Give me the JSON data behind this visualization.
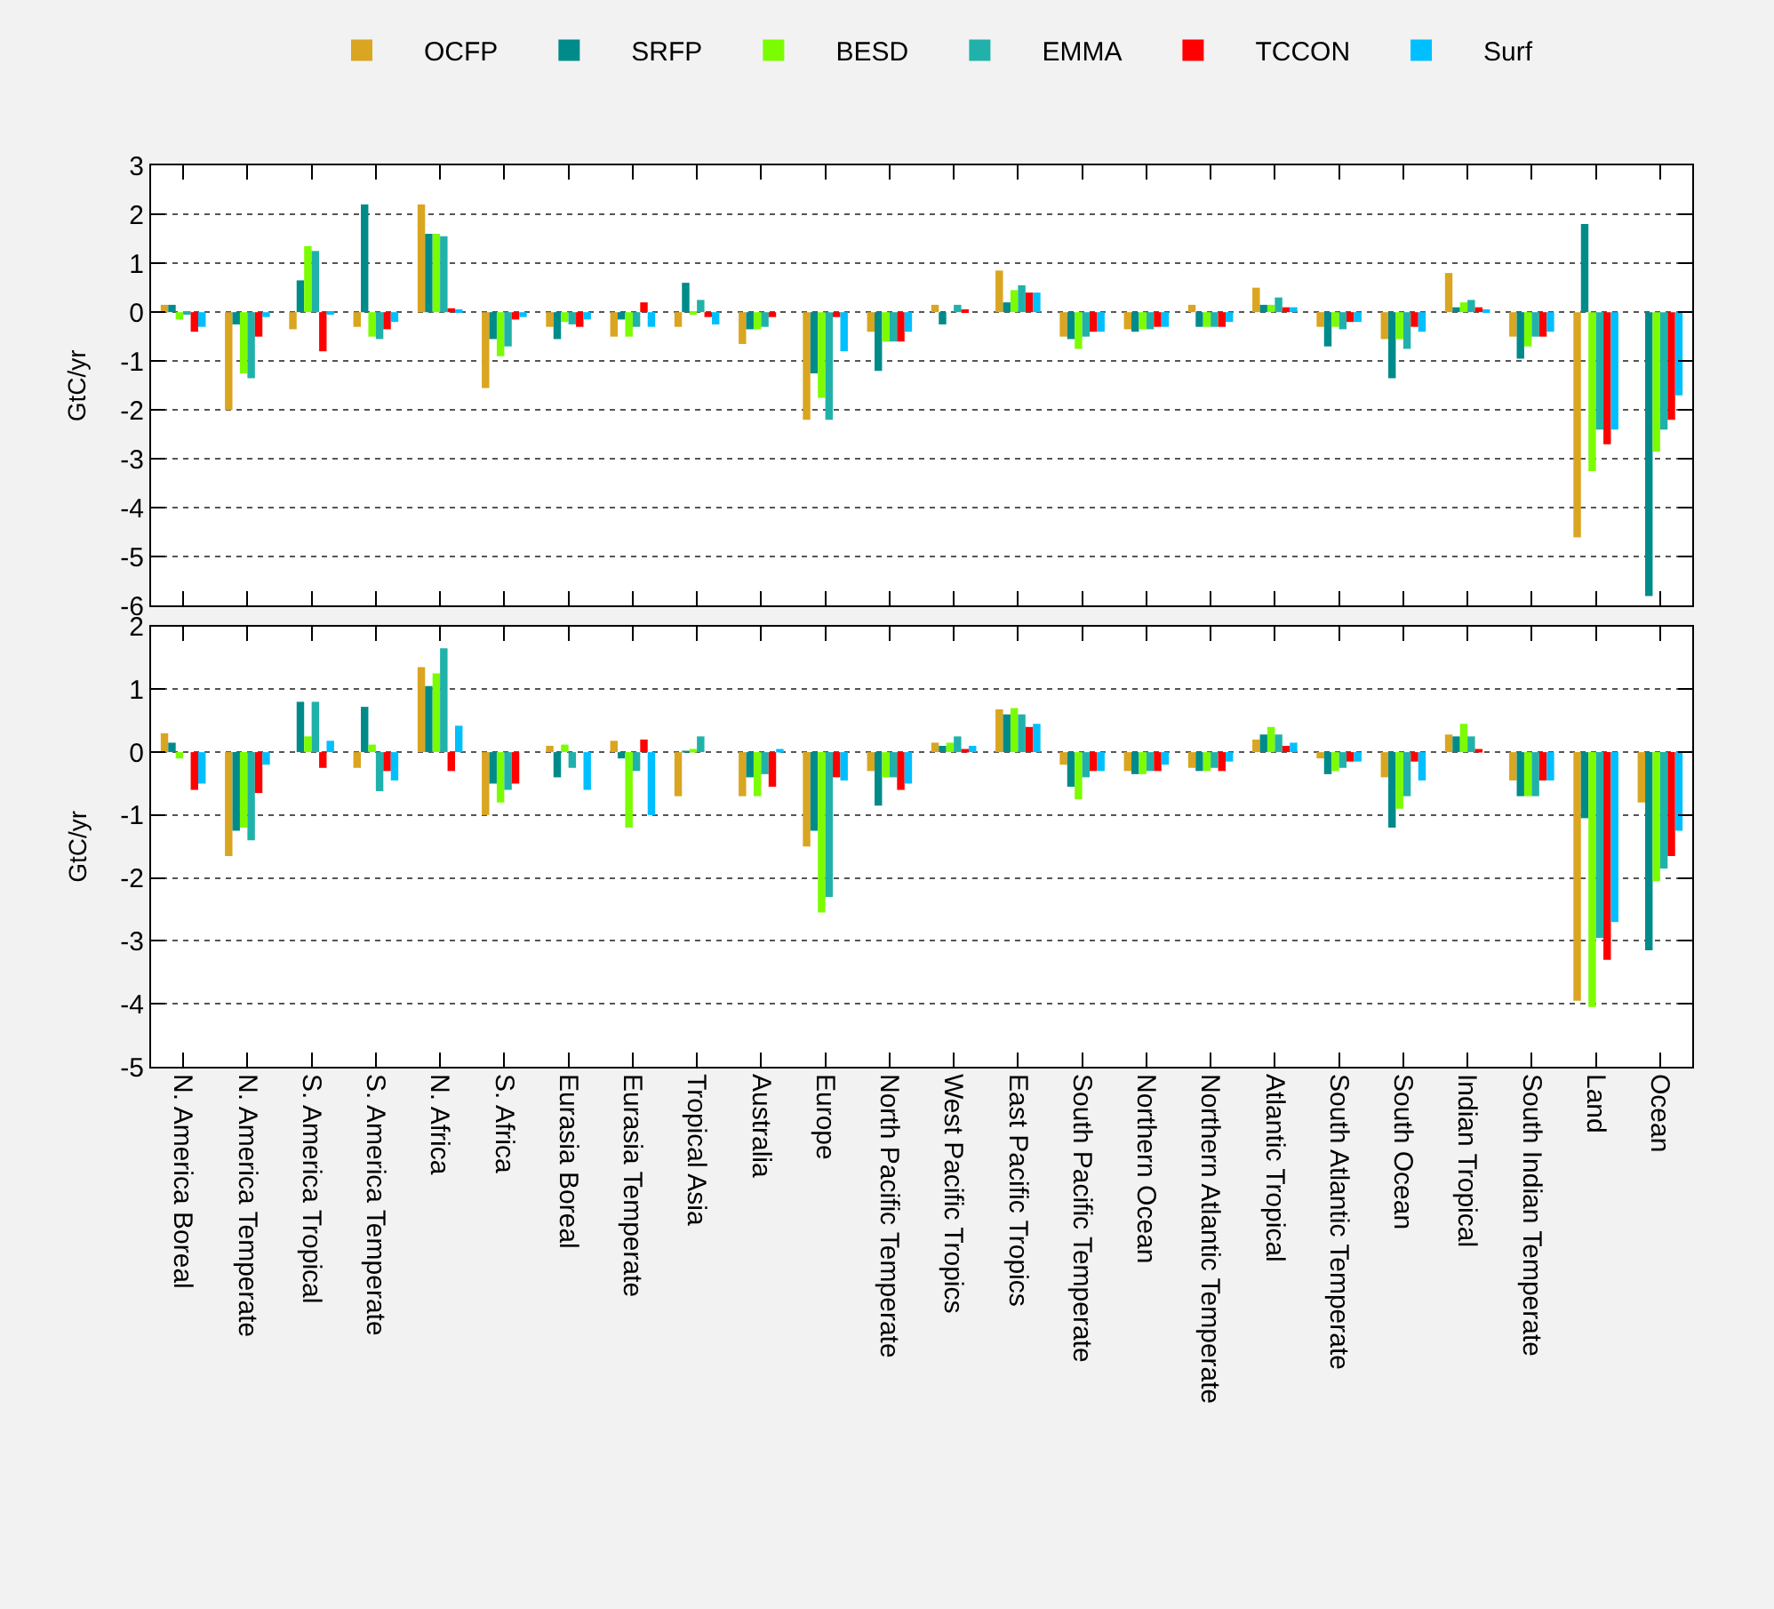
{
  "chart_data": [
    {
      "type": "bar",
      "ylabel": "GtC/yr",
      "legend": "top",
      "grid": "y",
      "tick_labels": "y",
      "categories": [
        null,
        null,
        null,
        null,
        null,
        null,
        null,
        null,
        null,
        null,
        null,
        null,
        null,
        null,
        null,
        null,
        null,
        null,
        null,
        null,
        null,
        null,
        null,
        null
      ],
      "ylim": [
        -6,
        3
      ],
      "yticks": [
        -6,
        -5,
        -4,
        -3,
        -2,
        -1,
        0,
        1,
        2,
        3
      ],
      "series": [
        {
          "name": "OCFP",
          "color": "#daa520",
          "values": [
            0.15,
            -2.0,
            -0.35,
            -0.3,
            2.2,
            -1.55,
            -0.3,
            -0.5,
            -0.3,
            -0.65,
            -2.2,
            -0.4,
            0.15,
            0.85,
            -0.5,
            -0.35,
            0.15,
            0.5,
            -0.3,
            -0.55,
            0.8,
            -0.5,
            -4.6,
            0.0
          ]
        },
        {
          "name": "SRFP",
          "color": "#008b8b",
          "values": [
            0.15,
            -0.25,
            0.65,
            2.2,
            1.6,
            -0.55,
            -0.55,
            -0.15,
            0.6,
            -0.35,
            -1.25,
            -1.2,
            -0.25,
            0.2,
            -0.55,
            -0.4,
            -0.3,
            0.15,
            -0.7,
            -1.35,
            0.1,
            -0.95,
            1.8,
            -5.8
          ]
        },
        {
          "name": "BESD",
          "color": "#7cfc00",
          "values": [
            -0.15,
            -1.25,
            1.35,
            -0.5,
            1.6,
            -0.9,
            -0.2,
            -0.5,
            -0.05,
            -0.35,
            -1.75,
            -0.6,
            0.0,
            0.45,
            -0.75,
            -0.35,
            -0.3,
            0.15,
            -0.3,
            -0.55,
            0.2,
            -0.7,
            -3.25,
            -2.85
          ]
        },
        {
          "name": "EMMA",
          "color": "#20b2aa",
          "values": [
            -0.05,
            -1.35,
            1.25,
            -0.55,
            1.55,
            -0.7,
            -0.25,
            -0.3,
            0.25,
            -0.3,
            -2.2,
            -0.6,
            0.15,
            0.55,
            -0.5,
            -0.35,
            -0.3,
            0.3,
            -0.35,
            -0.75,
            0.25,
            -0.5,
            -2.4,
            -2.4
          ]
        },
        {
          "name": "TCCON",
          "color": "#ff0000",
          "values": [
            -0.4,
            -0.5,
            -0.8,
            -0.35,
            0.08,
            -0.15,
            -0.3,
            0.2,
            -0.1,
            -0.1,
            -0.1,
            -0.6,
            0.05,
            0.4,
            -0.4,
            -0.3,
            -0.3,
            0.1,
            -0.2,
            -0.3,
            0.1,
            -0.5,
            -2.7,
            -2.2
          ]
        },
        {
          "name": "Surf",
          "color": "#00bfff",
          "values": [
            -0.3,
            -0.1,
            -0.05,
            -0.2,
            0.03,
            -0.1,
            -0.15,
            -0.3,
            -0.25,
            0.0,
            -0.8,
            -0.4,
            0.0,
            0.4,
            -0.4,
            -0.3,
            -0.2,
            0.1,
            -0.2,
            -0.4,
            0.05,
            -0.4,
            -2.4,
            -1.7
          ]
        }
      ]
    },
    {
      "type": "bar",
      "ylabel": "GtC/yr",
      "grid": "y",
      "categories": [
        "N. America Boreal",
        "N. America Temperate",
        "S. America Tropical",
        "S. America Temperate",
        "N. Africa",
        "S. Africa",
        "Eurasia Boreal",
        "Eurasia Temperate",
        "Tropical Asia",
        "Australia",
        "Europe",
        "North Pacific Temperate",
        "West Pacific Tropics",
        "East Pacific Tropics",
        "South Pacific Temperate",
        "Northern Ocean",
        "Northern Atlantic Temperate",
        "Atlantic Tropical",
        "South Atlantic Temperate",
        "South Ocean",
        "Indian Tropical",
        "South Indian Temperate",
        "Land",
        "Ocean"
      ],
      "ylim": [
        -5,
        2
      ],
      "yticks": [
        -5,
        -4,
        -3,
        -2,
        -1,
        0,
        1,
        2
      ],
      "series": [
        {
          "color": "#daa520",
          "values": [
            0.3,
            -1.65,
            0.0,
            -0.25,
            1.35,
            -1.0,
            0.1,
            0.18,
            -0.7,
            -0.7,
            -1.5,
            -0.3,
            0.15,
            0.68,
            -0.2,
            -0.3,
            -0.25,
            0.2,
            -0.1,
            -0.4,
            0.28,
            -0.45,
            -3.95,
            -0.8
          ]
        },
        {
          "color": "#008b8b",
          "values": [
            0.15,
            -1.25,
            0.8,
            0.72,
            1.05,
            -0.5,
            -0.4,
            -0.1,
            0.02,
            -0.4,
            -1.25,
            -0.85,
            0.1,
            0.6,
            -0.55,
            -0.35,
            -0.3,
            0.28,
            -0.35,
            -1.2,
            0.25,
            -0.7,
            -1.05,
            -3.15
          ]
        },
        {
          "color": "#7cfc00",
          "values": [
            -0.1,
            -1.2,
            0.25,
            0.12,
            1.25,
            -0.8,
            0.12,
            -1.2,
            0.05,
            -0.7,
            -2.55,
            -0.4,
            0.15,
            0.7,
            -0.75,
            -0.35,
            -0.3,
            0.4,
            -0.3,
            -0.9,
            0.45,
            -0.7,
            -4.05,
            -2.05
          ]
        },
        {
          "color": "#20b2aa",
          "values": [
            0.0,
            -1.4,
            0.8,
            -0.62,
            1.65,
            -0.6,
            -0.25,
            -0.3,
            0.25,
            -0.35,
            -2.3,
            -0.4,
            0.25,
            0.6,
            -0.4,
            -0.3,
            -0.25,
            0.28,
            -0.25,
            -0.7,
            0.25,
            -0.7,
            -2.95,
            -1.85
          ]
        },
        {
          "color": "#ff0000",
          "values": [
            -0.6,
            -0.65,
            -0.25,
            -0.3,
            -0.3,
            -0.5,
            0.0,
            0.2,
            0.0,
            -0.55,
            -0.4,
            -0.6,
            0.05,
            0.4,
            -0.3,
            -0.3,
            -0.3,
            0.1,
            -0.15,
            -0.15,
            0.05,
            -0.45,
            -3.3,
            -1.65
          ]
        },
        {
          "color": "#00bfff",
          "values": [
            -0.5,
            -0.2,
            0.18,
            -0.45,
            0.42,
            0.0,
            -0.6,
            -1.0,
            0.0,
            0.05,
            -0.45,
            -0.5,
            0.1,
            0.45,
            -0.3,
            -0.2,
            -0.15,
            0.15,
            -0.15,
            -0.45,
            0.0,
            -0.45,
            -2.7,
            -1.25
          ]
        }
      ]
    }
  ]
}
